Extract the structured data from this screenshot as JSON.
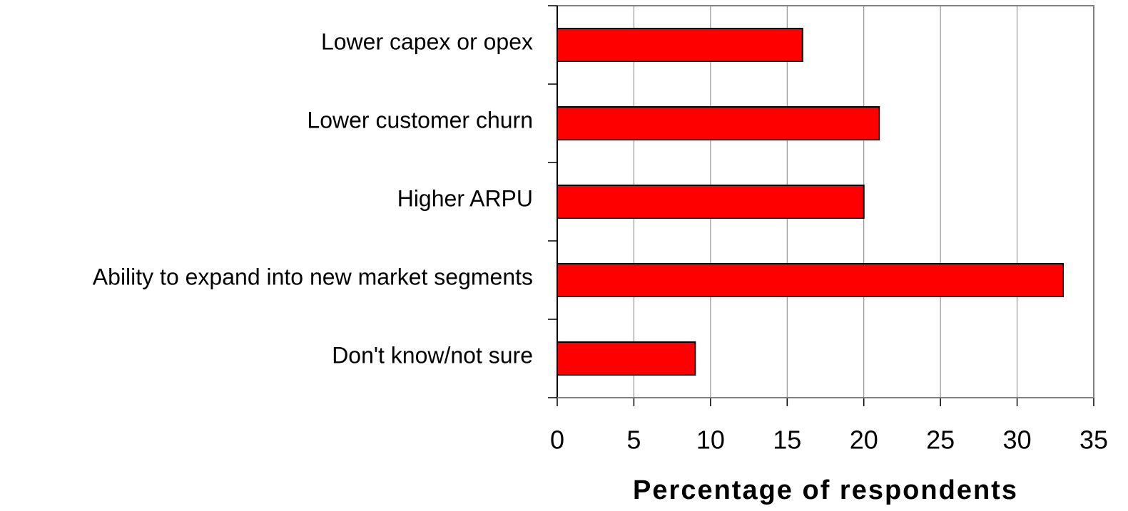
{
  "chart_data": {
    "type": "bar",
    "orientation": "horizontal",
    "categories": [
      "Lower capex or opex",
      "Lower customer churn",
      "Higher ARPU",
      "Ability to expand into new market segments",
      "Don't know/not sure"
    ],
    "values": [
      16,
      21,
      20,
      33,
      9
    ],
    "color": "#ff0000",
    "xlabel": "Percentage of respondents",
    "xlim": [
      0,
      35
    ],
    "xticks": [
      0,
      5,
      10,
      15,
      20,
      25,
      30,
      35
    ],
    "grid": true
  }
}
